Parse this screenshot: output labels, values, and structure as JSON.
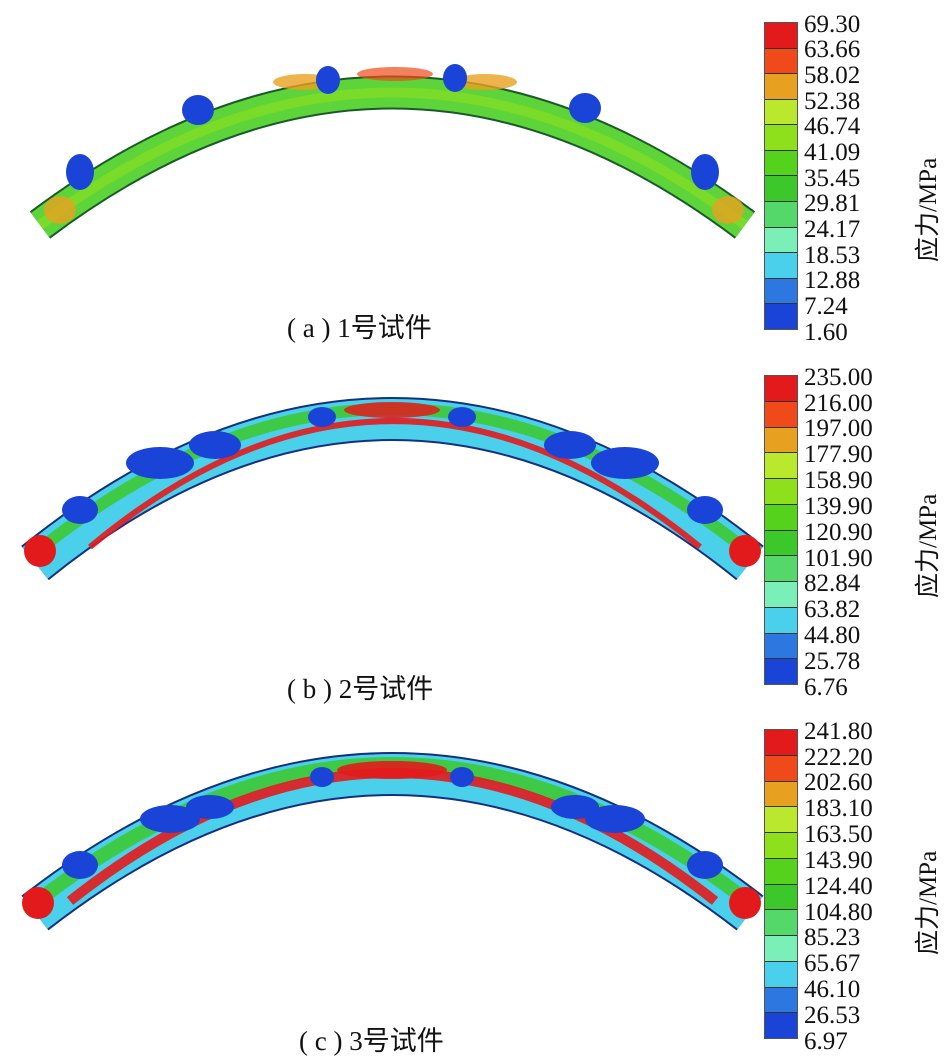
{
  "legend_unit": "应力/MPa",
  "colors": [
    "#e31a1c",
    "#f04a1a",
    "#e8a020",
    "#b9e82c",
    "#8ee01c",
    "#55d21c",
    "#3cc82a",
    "#55d86a",
    "#7af0b8",
    "#4ad0ea",
    "#2c78e0",
    "#1a44d8",
    "#1433c4"
  ],
  "panels": [
    {
      "caption": "( a ) 1号试件",
      "ticks": [
        "69.30",
        "63.66",
        "58.02",
        "52.38",
        "46.74",
        "41.09",
        "35.45",
        "29.81",
        "24.17",
        "18.53",
        "12.88",
        "7.24",
        "1.60"
      ]
    },
    {
      "caption": "( b ) 2号试件",
      "ticks": [
        "235.00",
        "216.00",
        "197.00",
        "177.90",
        "158.90",
        "139.90",
        "120.90",
        "101.90",
        "82.84",
        "63.82",
        "44.80",
        "25.78",
        "6.76"
      ]
    },
    {
      "caption": "( c ) 3号试件",
      "ticks": [
        "241.80",
        "222.20",
        "202.60",
        "183.10",
        "163.50",
        "143.90",
        "124.40",
        "104.80",
        "85.23",
        "65.67",
        "46.10",
        "26.53",
        "6.97"
      ]
    }
  ]
}
